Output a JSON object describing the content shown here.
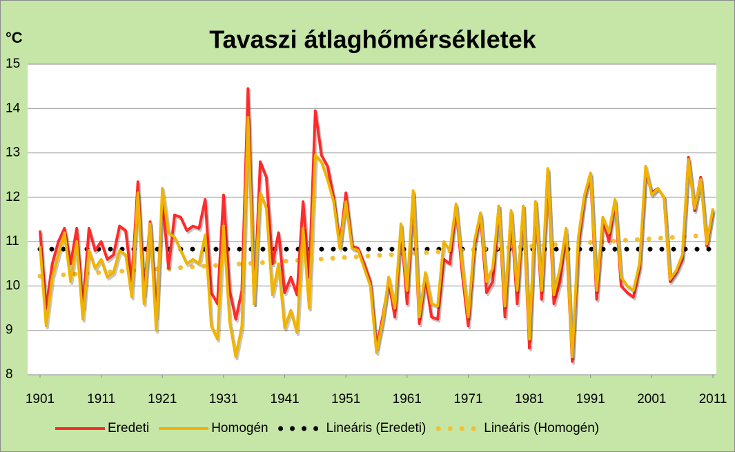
{
  "chart_data": {
    "type": "line",
    "title": "Tavaszi átlaghőmérsékletek",
    "y_label": "°C",
    "x": [
      1901,
      1902,
      1903,
      1904,
      1905,
      1906,
      1907,
      1908,
      1909,
      1910,
      1911,
      1912,
      1913,
      1914,
      1915,
      1916,
      1917,
      1918,
      1919,
      1920,
      1921,
      1922,
      1923,
      1924,
      1925,
      1926,
      1927,
      1928,
      1929,
      1930,
      1931,
      1932,
      1933,
      1934,
      1935,
      1936,
      1937,
      1938,
      1939,
      1940,
      1941,
      1942,
      1943,
      1944,
      1945,
      1946,
      1947,
      1948,
      1949,
      1950,
      1951,
      1952,
      1953,
      1954,
      1955,
      1956,
      1957,
      1958,
      1959,
      1960,
      1961,
      1962,
      1963,
      1964,
      1965,
      1966,
      1967,
      1968,
      1969,
      1970,
      1971,
      1972,
      1973,
      1974,
      1975,
      1976,
      1977,
      1978,
      1979,
      1980,
      1981,
      1982,
      1983,
      1984,
      1985,
      1986,
      1987,
      1988,
      1989,
      1990,
      1991,
      1992,
      1993,
      1994,
      1995,
      1996,
      1997,
      1998,
      1999,
      2000,
      2001,
      2002,
      2003,
      2004,
      2005,
      2006,
      2007,
      2008,
      2009,
      2010,
      2011
    ],
    "series": [
      {
        "name": "Eredeti",
        "color": "#ff2a2a",
        "values": [
          11.25,
          9.5,
          10.5,
          11.0,
          11.3,
          10.5,
          11.3,
          9.5,
          11.3,
          10.8,
          11.0,
          10.6,
          10.7,
          11.35,
          11.25,
          10.1,
          12.35,
          9.8,
          11.45,
          9.3,
          12.0,
          10.4,
          11.6,
          11.55,
          11.25,
          11.35,
          11.3,
          11.95,
          9.85,
          9.6,
          12.05,
          9.9,
          9.25,
          9.9,
          14.45,
          9.6,
          12.8,
          12.45,
          10.5,
          11.2,
          9.85,
          10.2,
          9.8,
          11.9,
          10.2,
          13.95,
          12.95,
          12.7,
          12.0,
          10.9,
          12.1,
          10.9,
          10.85,
          10.5,
          10.1,
          8.6,
          9.3,
          10.1,
          9.3,
          11.35,
          9.6,
          12.1,
          9.15,
          10.2,
          9.3,
          9.25,
          10.6,
          10.5,
          11.8,
          10.3,
          9.1,
          10.9,
          11.6,
          9.85,
          10.1,
          11.8,
          9.3,
          11.65,
          9.6,
          11.8,
          8.6,
          11.9,
          9.7,
          12.6,
          9.6,
          10.1,
          11.2,
          8.3,
          10.9,
          12.0,
          12.5,
          9.7,
          11.5,
          11.0,
          11.9,
          10.0,
          9.85,
          9.75,
          10.4,
          12.6,
          12.1,
          12.2,
          12.0,
          10.1,
          10.3,
          10.6,
          12.9,
          11.7,
          12.45,
          10.9,
          11.7
        ]
      },
      {
        "name": "Homogén",
        "color": "#f0b400",
        "values": [
          10.9,
          9.1,
          10.2,
          10.7,
          11.2,
          10.1,
          11.0,
          9.25,
          10.8,
          10.4,
          10.6,
          10.2,
          10.3,
          10.8,
          10.7,
          9.75,
          12.1,
          9.6,
          11.4,
          9.0,
          12.2,
          11.2,
          11.1,
          10.8,
          10.5,
          10.6,
          10.5,
          11.15,
          9.1,
          8.8,
          11.35,
          9.2,
          8.4,
          9.1,
          13.8,
          9.6,
          12.1,
          11.75,
          9.8,
          10.5,
          9.05,
          9.45,
          8.95,
          11.3,
          9.5,
          12.95,
          12.8,
          12.4,
          11.9,
          10.85,
          11.9,
          10.85,
          10.8,
          10.4,
          10.0,
          8.5,
          9.2,
          10.2,
          9.5,
          11.4,
          9.9,
          12.15,
          9.3,
          10.3,
          9.6,
          9.55,
          11.0,
          10.8,
          11.85,
          10.5,
          9.3,
          11.0,
          11.65,
          10.1,
          10.4,
          11.8,
          9.55,
          11.7,
          9.9,
          11.8,
          8.8,
          11.9,
          9.9,
          12.65,
          9.8,
          10.4,
          11.3,
          8.4,
          11.1,
          12.05,
          12.55,
          9.9,
          11.55,
          11.2,
          11.95,
          10.2,
          10.0,
          9.9,
          10.5,
          12.7,
          12.05,
          12.2,
          12.0,
          10.15,
          10.35,
          10.7,
          12.85,
          11.75,
          12.4,
          10.95,
          11.75
        ]
      }
    ],
    "trendlines": [
      {
        "name": "Lineáris (Eredeti)",
        "color": "#000000",
        "x": [
          1901,
          2011
        ],
        "values": [
          10.83,
          10.83
        ]
      },
      {
        "name": "Lineáris (Homogén)",
        "color": "#f2c038",
        "x": [
          1901,
          2011
        ],
        "values": [
          10.22,
          11.15
        ]
      }
    ],
    "xlim": [
      1901,
      2011
    ],
    "xticks": [
      1901,
      1911,
      1921,
      1931,
      1941,
      1951,
      1961,
      1971,
      1981,
      1991,
      2001,
      2011
    ],
    "ylim": [
      8,
      15
    ],
    "yticks": [
      8,
      9,
      10,
      11,
      12,
      13,
      14,
      15
    ],
    "grid": true,
    "legend": "bottom"
  }
}
